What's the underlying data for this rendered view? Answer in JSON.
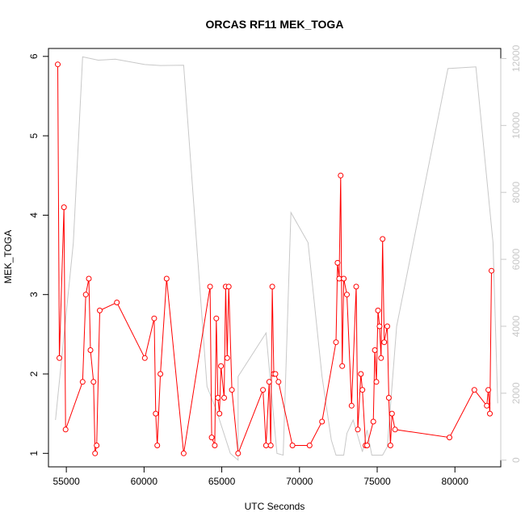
{
  "chart_data": {
    "type": "line",
    "title": "ORCAS RF11 MEK_TOGA",
    "xlabel": "UTC Seconds",
    "ylabel": "MEK_TOGA",
    "xlim": [
      53850,
      82950
    ],
    "ylim": [
      0.83,
      6.1
    ],
    "y2lim": [
      -200,
      12300
    ],
    "x_ticks": [
      55000,
      60000,
      65000,
      70000,
      75000,
      80000
    ],
    "x_tick_labels": [
      "55000",
      "60000",
      "65000",
      "70000",
      "75000",
      "80000"
    ],
    "y_ticks": [
      1,
      2,
      3,
      4,
      5,
      6
    ],
    "y_tick_labels": [
      "1",
      "2",
      "3",
      "4",
      "5",
      "6"
    ],
    "y2_ticks": [
      0,
      2000,
      4000,
      6000,
      8000,
      10000,
      12000
    ],
    "y2_tick_labels": [
      "0",
      "2000",
      "4000",
      "6000",
      "8000",
      "10000",
      "12000"
    ],
    "grid": false,
    "colors": {
      "series": "#ff0000",
      "altitude": "#c8c8c8",
      "axis": "#000000",
      "right_axis": "#c8c8c8"
    },
    "series": [
      {
        "axis": "left",
        "style": "line+open-circle",
        "points": [
          [
            54450,
            5.9
          ],
          [
            54550,
            2.2
          ],
          [
            54850,
            4.1
          ],
          [
            54950,
            1.3
          ],
          [
            56050,
            1.9
          ],
          [
            56250,
            3.0
          ],
          [
            56450,
            3.2
          ],
          [
            56550,
            2.3
          ],
          [
            56750,
            1.9
          ],
          [
            56850,
            1.0
          ],
          [
            56950,
            1.1
          ],
          [
            57150,
            2.8
          ],
          [
            58250,
            2.9
          ],
          [
            60050,
            2.2
          ],
          [
            60650,
            2.7
          ],
          [
            60750,
            1.5
          ],
          [
            60850,
            1.1
          ],
          [
            61050,
            2.0
          ],
          [
            61450,
            3.2
          ],
          [
            62550,
            1.0
          ],
          [
            64250,
            3.1
          ],
          [
            64350,
            1.2
          ],
          [
            64550,
            1.1
          ],
          [
            64650,
            2.7
          ],
          [
            64750,
            1.7
          ],
          [
            64850,
            1.5
          ],
          [
            64950,
            2.1
          ],
          [
            65150,
            1.7
          ],
          [
            65250,
            3.1
          ],
          [
            65350,
            2.2
          ],
          [
            65450,
            3.1
          ],
          [
            65650,
            1.8
          ],
          [
            66050,
            1.0
          ],
          [
            67650,
            1.8
          ],
          [
            67850,
            1.1
          ],
          [
            68050,
            1.9
          ],
          [
            68150,
            1.1
          ],
          [
            68250,
            3.1
          ],
          [
            68350,
            2.0
          ],
          [
            68450,
            2.0
          ],
          [
            68650,
            1.9
          ],
          [
            69550,
            1.1
          ],
          [
            70650,
            1.1
          ],
          [
            71450,
            1.4
          ],
          [
            72350,
            2.4
          ],
          [
            72450,
            3.4
          ],
          [
            72550,
            3.2
          ],
          [
            72650,
            4.5
          ],
          [
            72750,
            2.1
          ],
          [
            72850,
            3.2
          ],
          [
            73050,
            3.0
          ],
          [
            73350,
            1.6
          ],
          [
            73650,
            3.1
          ],
          [
            73750,
            1.3
          ],
          [
            73950,
            2.0
          ],
          [
            74050,
            1.8
          ],
          [
            74250,
            1.1
          ],
          [
            74350,
            1.1
          ],
          [
            74750,
            1.4
          ],
          [
            74850,
            2.3
          ],
          [
            74950,
            1.9
          ],
          [
            75050,
            2.8
          ],
          [
            75150,
            2.6
          ],
          [
            75250,
            2.2
          ],
          [
            75350,
            3.7
          ],
          [
            75450,
            2.4
          ],
          [
            75650,
            2.6
          ],
          [
            75750,
            1.7
          ],
          [
            75850,
            1.1
          ],
          [
            75950,
            1.5
          ],
          [
            76150,
            1.3
          ],
          [
            79650,
            1.2
          ],
          [
            81250,
            1.8
          ],
          [
            82050,
            1.6
          ],
          [
            82150,
            1.8
          ],
          [
            82250,
            1.5
          ],
          [
            82350,
            3.3
          ]
        ]
      },
      {
        "axis": "right",
        "style": "line",
        "points": [
          [
            54300,
            1200
          ],
          [
            55450,
            6500
          ],
          [
            56050,
            12050
          ],
          [
            57050,
            11950
          ],
          [
            58150,
            11980
          ],
          [
            60050,
            11820
          ],
          [
            61050,
            11790
          ],
          [
            62550,
            11800
          ],
          [
            64050,
            2200
          ],
          [
            64650,
            1500
          ],
          [
            65550,
            200
          ],
          [
            66050,
            0
          ],
          [
            66050,
            2500
          ],
          [
            67850,
            3800
          ],
          [
            68550,
            200
          ],
          [
            68950,
            150
          ],
          [
            69450,
            7400
          ],
          [
            70550,
            6500
          ],
          [
            71450,
            2500
          ],
          [
            72050,
            600
          ],
          [
            72350,
            150
          ],
          [
            72850,
            150
          ],
          [
            73050,
            800
          ],
          [
            73450,
            1200
          ],
          [
            74050,
            250
          ],
          [
            74350,
            900
          ],
          [
            74650,
            150
          ],
          [
            75350,
            150
          ],
          [
            75650,
            400
          ],
          [
            76250,
            4000
          ],
          [
            79550,
            11700
          ],
          [
            81350,
            11750
          ],
          [
            82450,
            6500
          ],
          [
            82750,
            1700
          ]
        ]
      }
    ]
  }
}
